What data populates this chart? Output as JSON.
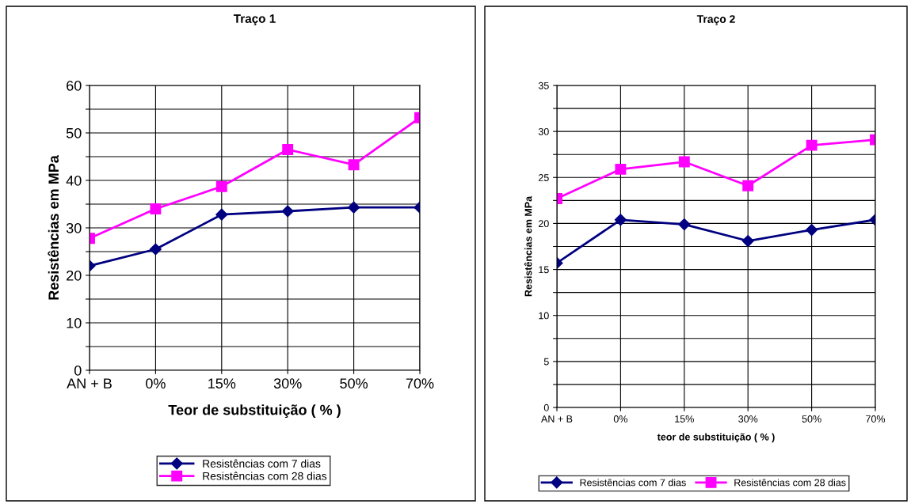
{
  "chart_data": [
    {
      "type": "line",
      "title": "Traço 1",
      "xlabel": "Teor de substituição ( % )",
      "ylabel": "Resistências em MPa",
      "categories": [
        "AN + B",
        "0%",
        "15%",
        "30%",
        "50%",
        "70%"
      ],
      "series": [
        {
          "name": "Resistências com 7 dias",
          "color": "#000080",
          "marker": "diamond",
          "values": [
            22,
            25.5,
            32.8,
            33.5,
            34.3,
            34.3
          ]
        },
        {
          "name": "Resistências com 28 dias",
          "color": "#ff00ff",
          "marker": "square",
          "values": [
            27.8,
            34,
            38.7,
            46.5,
            43.3,
            53.2
          ]
        }
      ],
      "ylim": [
        0,
        60
      ],
      "yticks": [
        0,
        {
          "value": 5,
          "label": null
        },
        10,
        {
          "value": 15,
          "label": null
        },
        20,
        {
          "value": 25,
          "label": null
        },
        30,
        {
          "value": 35,
          "label": null
        },
        40,
        {
          "value": 45,
          "label": null
        },
        50,
        {
          "value": 55,
          "label": null
        },
        60
      ],
      "grid": true,
      "legend": "bottom",
      "line_style": "solid"
    },
    {
      "type": "line",
      "title": "Traço 2",
      "xlabel": "teor de substituição ( % )",
      "ylabel": "Resistências em MPa",
      "categories": [
        "AN + B",
        "0%",
        "15%",
        "30%",
        "50%",
        "70%"
      ],
      "series": [
        {
          "name": "Resistências com 7 dias",
          "color": "#000080",
          "marker": "diamond",
          "values": [
            15.7,
            20.4,
            19.9,
            18.1,
            19.3,
            20.4
          ]
        },
        {
          "name": "Resistências com 28 dias",
          "color": "#ff00ff",
          "marker": "square",
          "values": [
            22.7,
            25.9,
            26.7,
            24.1,
            28.5,
            29.1
          ]
        }
      ],
      "ylim": [
        0,
        35
      ],
      "yticks": [
        0,
        {
          "value": 2.5,
          "label": null
        },
        5,
        {
          "value": 7.5,
          "label": null
        },
        10,
        {
          "value": 12.5,
          "label": null
        },
        15,
        {
          "value": 17.5,
          "label": null
        },
        20,
        {
          "value": 22.5,
          "label": null
        },
        25,
        {
          "value": 27.5,
          "label": null
        },
        30,
        {
          "value": 32.5,
          "label": null
        },
        35
      ],
      "grid": true,
      "legend": "bottom",
      "line_style": "solid"
    }
  ]
}
